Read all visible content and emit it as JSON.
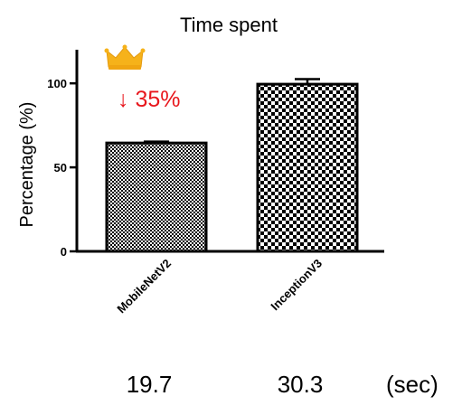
{
  "chart_data": {
    "type": "bar",
    "title": "Time spent",
    "ylabel": "Percentage (%)",
    "xlabel": "",
    "ylim": [
      0,
      120
    ],
    "yticks": [
      0,
      50,
      100
    ],
    "categories": [
      "MobileNetV2",
      "InceptionV3"
    ],
    "values": [
      64.5,
      99.5
    ],
    "error_bars": [
      0.8,
      3.0
    ],
    "bar_patterns": [
      "fine-checker",
      "coarse-checker"
    ],
    "grid": false,
    "legend": "none",
    "annotation": {
      "text": "↓ 35%",
      "color": "#e8171d",
      "icon": "crown-icon"
    },
    "time_values": [
      "19.7",
      "30.3"
    ],
    "time_unit": "(sec)"
  }
}
